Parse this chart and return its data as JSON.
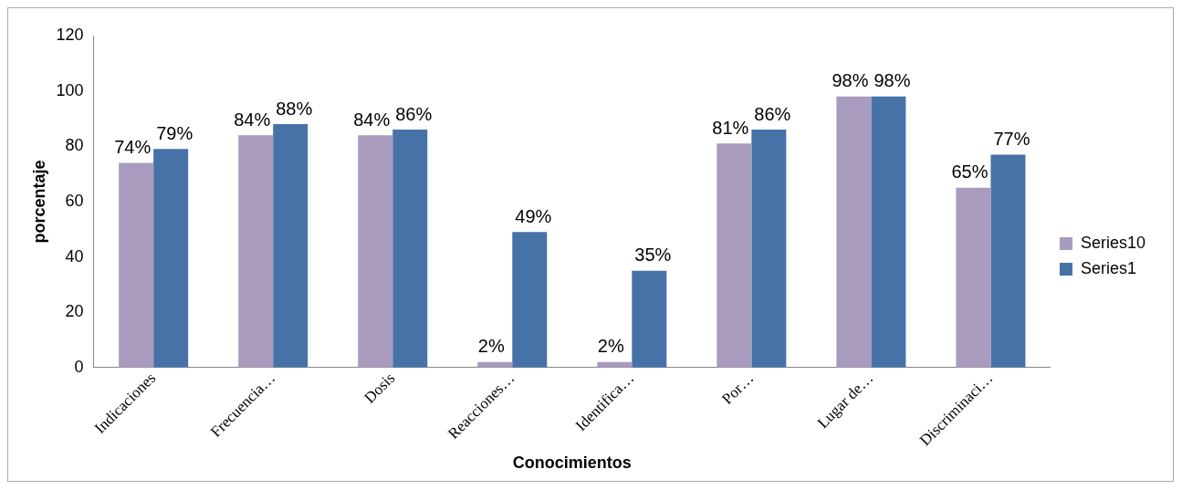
{
  "chart_data": {
    "type": "bar",
    "xlabel": "Conocimientos",
    "ylabel": "porcentaje",
    "categories": [
      "Indicaciones",
      "Frecuencia…",
      "Dosis",
      "Reacciones…",
      "Identifica…",
      "Por…",
      "Lugar de…",
      "Discriminaci…"
    ],
    "series": [
      {
        "name": "Series10",
        "color": "#a99bbd",
        "values": [
          74,
          84,
          84,
          2,
          2,
          81,
          98,
          65
        ],
        "value_labels": [
          "74%",
          "84%",
          "84%",
          "2%",
          "2%",
          "81%",
          "98%",
          "65%"
        ]
      },
      {
        "name": "Series1",
        "color": "#4672a8",
        "values": [
          79,
          88,
          86,
          49,
          35,
          86,
          98,
          77
        ],
        "value_labels": [
          "79%",
          "88%",
          "86%",
          "49%",
          "35%",
          "86%",
          "98%",
          "77%"
        ]
      }
    ],
    "ylim": [
      0,
      120
    ],
    "yticks": [
      0,
      20,
      40,
      60,
      80,
      100,
      120
    ],
    "grid": false,
    "legend": "right"
  }
}
